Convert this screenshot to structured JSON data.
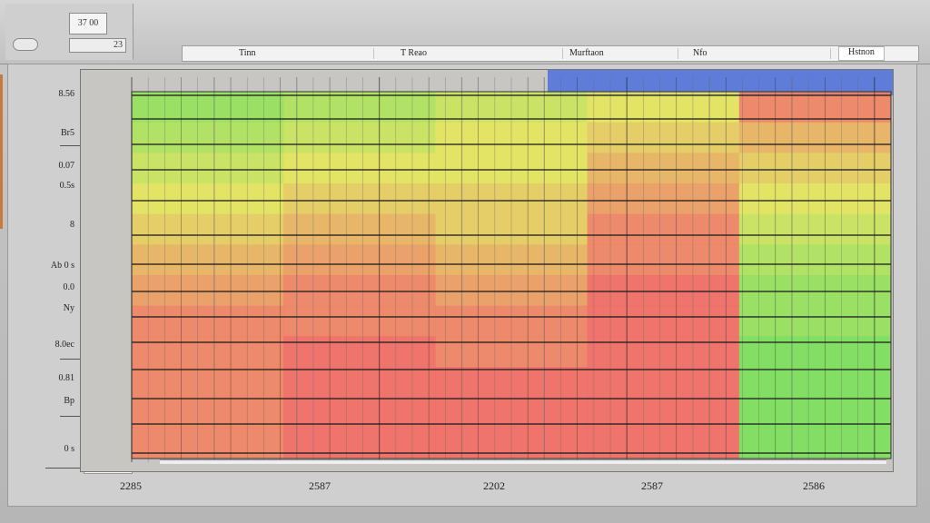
{
  "toolbar": {
    "zoom_value": "37 00",
    "scale_value": "23"
  },
  "tabs": [
    {
      "label": "Tinn"
    },
    {
      "label": "T Reao"
    },
    {
      "label": "Murftaon"
    },
    {
      "label": "Nfo"
    },
    {
      "label": "Hstnon"
    }
  ],
  "y_axis_labels": [
    "8.56",
    "Br5",
    "0.07",
    "0.5s",
    "8",
    "Ab 0 s",
    "0.0",
    "Ny",
    "8.0ec",
    "0.81",
    "Bp",
    "0 s"
  ],
  "x_axis_labels": [
    "2285",
    "2587",
    "2202",
    "2587",
    "2586"
  ],
  "colors": {
    "green": "#5fe05a",
    "yellow": "#e5e65c",
    "red": "#f26a63",
    "blue": "#4b6fdc",
    "gray": "#c8c6c3"
  },
  "chart_data": {
    "type": "heatmap",
    "x_labels": [
      "2285",
      "2587",
      "2202",
      "2587",
      "2586"
    ],
    "y_labels": [
      "8.56",
      "Br5",
      "0.07",
      "0.5s",
      "8",
      "Ab 0 s",
      "0.0",
      "Ny",
      "8.0ec",
      "0.81",
      "Bp",
      "0 s"
    ],
    "grid": true,
    "values": [
      [
        0.2,
        0.3,
        0.4,
        0.5,
        0.9
      ],
      [
        0.3,
        0.4,
        0.5,
        0.6,
        0.7
      ],
      [
        0.4,
        0.5,
        0.5,
        0.7,
        0.6
      ],
      [
        0.5,
        0.6,
        0.6,
        0.8,
        0.5
      ],
      [
        0.6,
        0.7,
        0.6,
        0.9,
        0.4
      ],
      [
        0.7,
        0.8,
        0.7,
        0.9,
        0.3
      ],
      [
        0.8,
        0.9,
        0.8,
        1.0,
        0.2
      ],
      [
        0.9,
        0.9,
        0.9,
        1.0,
        0.2
      ],
      [
        0.9,
        1.0,
        0.9,
        1.0,
        0.1
      ],
      [
        0.9,
        1.0,
        1.0,
        1.0,
        0.1
      ],
      [
        0.9,
        1.0,
        1.0,
        1.0,
        0.1
      ],
      [
        0.9,
        1.0,
        1.0,
        1.0,
        0.1
      ]
    ]
  }
}
